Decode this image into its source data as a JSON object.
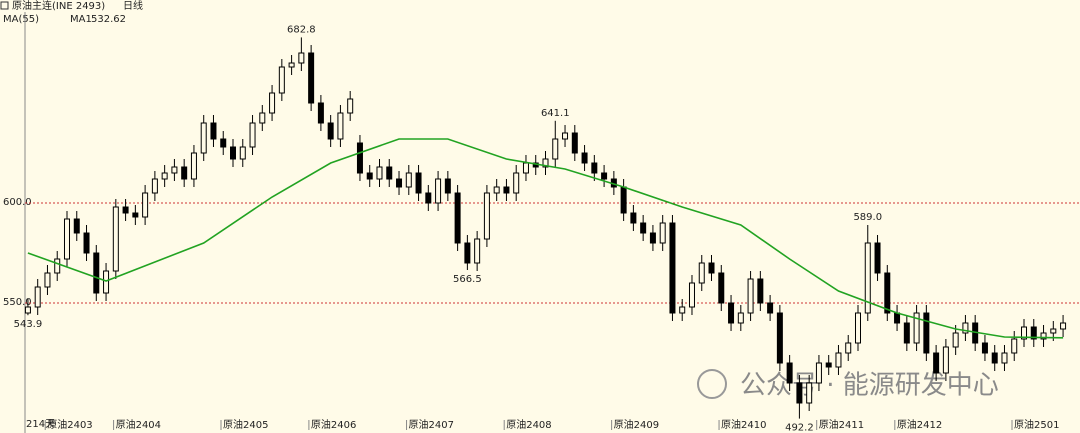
{
  "chart_data": {
    "type": "candlestick",
    "title": "原油主连(INE 2493)",
    "period": "日线",
    "indicator": "MA(55)",
    "day_count": "214天",
    "watermark": "公众号 · 能源研发中心",
    "up_color": "#000000",
    "down_color": "#000000",
    "background": "#fffbe8",
    "open": [
      545,
      548,
      558,
      565,
      572,
      592,
      585,
      575,
      555,
      566,
      598,
      595,
      593,
      605,
      612,
      615,
      618,
      612,
      625,
      640,
      632,
      628,
      622,
      628,
      640,
      645,
      655,
      668,
      670,
      675,
      650,
      640,
      632,
      645,
      630,
      615,
      612,
      618,
      612,
      608,
      615,
      605,
      600,
      612,
      605,
      580,
      570,
      582,
      605,
      608,
      605,
      615,
      620,
      618,
      622,
      632,
      635,
      625,
      620,
      615,
      612,
      608,
      595,
      590,
      585,
      580,
      590,
      545,
      548,
      560,
      570,
      565,
      550,
      540,
      545,
      562,
      550,
      545,
      520,
      510,
      500,
      510,
      520,
      518,
      525,
      530,
      545,
      580,
      565,
      545,
      540,
      530,
      545,
      525,
      515,
      528,
      535,
      540,
      530,
      525,
      520,
      525,
      532,
      538,
      532,
      535,
      537
    ],
    "high": [
      552,
      562,
      569,
      576,
      596,
      596,
      589,
      579,
      570,
      602,
      602,
      599,
      609,
      616,
      619,
      622,
      622,
      629,
      644,
      644,
      636,
      632,
      632,
      644,
      649,
      659,
      672,
      674,
      682.8,
      679,
      654,
      644,
      649,
      656,
      634,
      619,
      622,
      622,
      616,
      619,
      619,
      609,
      616,
      616,
      609,
      584,
      586,
      609,
      612,
      612,
      619,
      624,
      624,
      626,
      641.1,
      639,
      639,
      629,
      624,
      619,
      616,
      612,
      599,
      594,
      589,
      594,
      594,
      552,
      564,
      574,
      574,
      569,
      554,
      549,
      566,
      566,
      554,
      549,
      524,
      514,
      514,
      524,
      524,
      529,
      534,
      549,
      589,
      584,
      569,
      549,
      544,
      549,
      549,
      529,
      532,
      539,
      544,
      544,
      534,
      529,
      529,
      536,
      542,
      542,
      539,
      541,
      544
    ],
    "low": [
      543.9,
      544,
      554,
      561,
      568,
      581,
      571,
      551,
      551,
      562,
      591,
      589,
      589,
      601,
      608,
      611,
      608,
      608,
      621,
      628,
      624,
      618,
      618,
      624,
      636,
      641,
      651,
      664,
      666,
      646,
      636,
      628,
      628,
      641,
      611,
      608,
      608,
      608,
      604,
      604,
      601,
      596,
      596,
      601,
      576,
      566.5,
      566,
      578,
      601,
      601,
      601,
      611,
      614,
      614,
      618,
      628,
      621,
      616,
      611,
      608,
      604,
      591,
      586,
      581,
      576,
      576,
      541,
      541,
      544,
      556,
      561,
      546,
      536,
      536,
      541,
      546,
      541,
      516,
      506,
      492.2,
      496,
      506,
      514,
      514,
      521,
      526,
      541,
      561,
      541,
      536,
      526,
      526,
      521,
      511,
      511,
      524,
      531,
      526,
      521,
      516,
      516,
      521,
      528,
      528,
      528,
      531,
      533
    ],
    "close": [
      548,
      558,
      565,
      572,
      592,
      585,
      575,
      555,
      566,
      598,
      595,
      593,
      605,
      612,
      615,
      618,
      612,
      625,
      640,
      632,
      628,
      622,
      628,
      640,
      645,
      655,
      668,
      670,
      675,
      650,
      640,
      632,
      645,
      652,
      615,
      612,
      618,
      612,
      608,
      615,
      605,
      600,
      612,
      605,
      580,
      570,
      582,
      605,
      608,
      605,
      615,
      620,
      618,
      622,
      632,
      635,
      625,
      620,
      615,
      612,
      608,
      595,
      590,
      585,
      580,
      590,
      545,
      548,
      560,
      570,
      565,
      550,
      540,
      545,
      562,
      550,
      545,
      520,
      510,
      500,
      510,
      520,
      518,
      525,
      530,
      545,
      580,
      565,
      545,
      540,
      530,
      545,
      525,
      515,
      528,
      535,
      540,
      530,
      525,
      520,
      525,
      532,
      538,
      532,
      535,
      537,
      540
    ],
    "series": [
      {
        "name": "MA1",
        "color": "#22a322",
        "x": [
          0,
          8,
          18,
          25,
          31,
          38,
          43,
          49,
          55,
          61,
          67,
          73,
          78,
          83,
          89,
          95,
          100,
          106
        ],
        "values": [
          575,
          561,
          580,
          603,
          620,
          632,
          632,
          622,
          617,
          608,
          598,
          589,
          572,
          556,
          545,
          537,
          533,
          532.62
        ]
      }
    ],
    "annotations": [
      {
        "x": 0,
        "value": 543.9,
        "label": "543.9",
        "side": "low"
      },
      {
        "x": 28,
        "value": 682.8,
        "label": "682.8",
        "side": "high"
      },
      {
        "x": 45,
        "value": 566.5,
        "label": "566.5",
        "side": "low"
      },
      {
        "x": 54,
        "value": 641.1,
        "label": "641.1",
        "side": "high"
      },
      {
        "x": 79,
        "value": 492.2,
        "label": "492.2",
        "side": "low"
      },
      {
        "x": 86,
        "value": 589.0,
        "label": "589.0",
        "side": "high"
      }
    ],
    "xlim": [
      -0.3,
      106.3
    ],
    "xticks": [
      {
        "value": 3,
        "label": "原油2403"
      },
      {
        "value": 10,
        "label": "原油2404"
      },
      {
        "value": 21,
        "label": "原油2405"
      },
      {
        "value": 30,
        "label": "原油2406"
      },
      {
        "value": 40,
        "label": "原油2407"
      },
      {
        "value": 50,
        "label": "原油2408"
      },
      {
        "value": 61,
        "label": "原油2409"
      },
      {
        "value": 72,
        "label": "原油2410"
      },
      {
        "value": 82,
        "label": "原油2411"
      },
      {
        "value": 90,
        "label": "原油2412"
      },
      {
        "value": 102,
        "label": "原油2501"
      }
    ],
    "ylim": [
      487,
      700
    ],
    "yticks": [
      {
        "value": 600,
        "label": "600.0"
      },
      {
        "value": 550,
        "label": "550.0"
      }
    ],
    "grid": true,
    "grid_color": "#cc3333"
  }
}
